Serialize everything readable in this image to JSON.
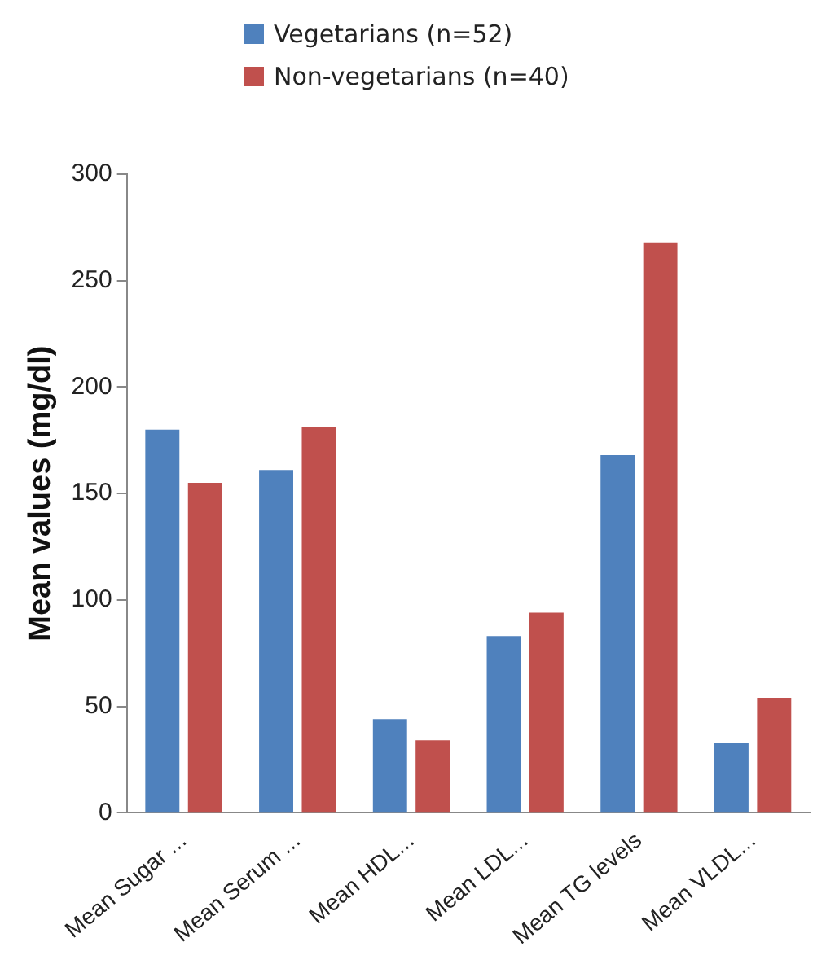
{
  "chart_data": {
    "type": "bar",
    "ylabel": "Mean values (mg/dl)",
    "categories": [
      "Mean Sugar ...",
      "Mean Serum ...",
      "Mean HDL...",
      "Mean LDL...",
      "Mean TG levels",
      "Mean VLDL..."
    ],
    "series": [
      {
        "name": "Vegetarians (n=52)",
        "color": "#4f81bd",
        "values": [
          180,
          161,
          44,
          83,
          168,
          33
        ]
      },
      {
        "name": "Non-vegetarians (n=40)",
        "color": "#c0504d",
        "values": [
          155,
          181,
          34,
          94,
          268,
          54
        ]
      }
    ],
    "ylim": [
      0,
      300
    ],
    "yticks": [
      0,
      50,
      100,
      150,
      200,
      250,
      300
    ],
    "grid": false,
    "legend": "top"
  }
}
